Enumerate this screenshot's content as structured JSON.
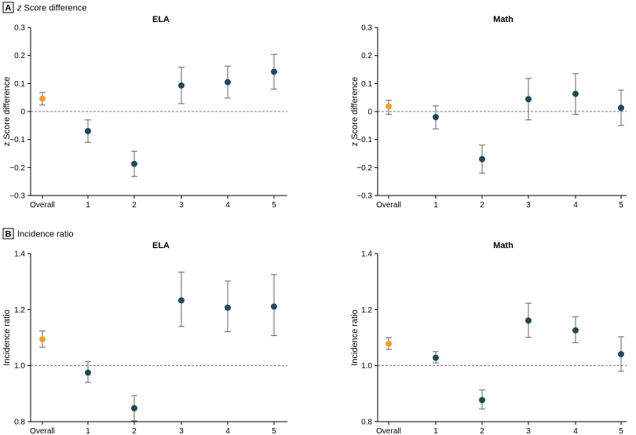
{
  "panels": [
    {
      "letter": "A",
      "title": "z Score difference",
      "title_italic_prefix": "z"
    },
    {
      "letter": "B",
      "title": "Incidence ratio",
      "title_italic_prefix": ""
    }
  ],
  "colors": {
    "overall": "#F0A02A",
    "grade": "#1F4A5A",
    "errorbar": "#666666",
    "axis": "#000000",
    "refline": "#777777"
  },
  "chart_data": [
    {
      "type": "scatter",
      "panel": "A",
      "title": "ELA",
      "ylabel": "z Score difference",
      "categories": [
        "Overall",
        "1",
        "2",
        "3",
        "4",
        "5"
      ],
      "ylim": [
        -0.3,
        0.3
      ],
      "yticks": [
        "0.3",
        "0.2",
        "0.1",
        "0",
        "−0.1",
        "−0.2",
        "−0.3"
      ],
      "ytick_values": [
        0.3,
        0.2,
        0.1,
        0,
        -0.1,
        -0.2,
        -0.3
      ],
      "reference": 0,
      "values": [
        0.046,
        -0.07,
        -0.187,
        0.093,
        0.105,
        0.142
      ],
      "lower": [
        0.023,
        -0.11,
        -0.232,
        0.028,
        0.048,
        0.08
      ],
      "upper": [
        0.068,
        -0.03,
        -0.142,
        0.158,
        0.162,
        0.204
      ]
    },
    {
      "type": "scatter",
      "panel": "A",
      "title": "Math",
      "ylabel": "z Score difference",
      "categories": [
        "Overall",
        "1",
        "2",
        "3",
        "4",
        "5"
      ],
      "ylim": [
        -0.3,
        0.3
      ],
      "yticks": [
        "0.3",
        "0.2",
        "0.1",
        "0",
        "−0.1",
        "−0.2",
        "−0.3"
      ],
      "ytick_values": [
        0.3,
        0.2,
        0.1,
        0,
        -0.1,
        -0.2,
        -0.3
      ],
      "reference": 0,
      "values": [
        0.018,
        -0.02,
        -0.17,
        0.044,
        0.063,
        0.013
      ],
      "lower": [
        -0.01,
        -0.062,
        -0.22,
        -0.03,
        -0.01,
        -0.05
      ],
      "upper": [
        0.04,
        0.02,
        -0.12,
        0.118,
        0.135,
        0.076
      ]
    },
    {
      "type": "scatter",
      "panel": "B",
      "title": "ELA",
      "ylabel": "Incidence ratio",
      "categories": [
        "Overall",
        "1",
        "2",
        "3",
        "4",
        "5"
      ],
      "ylim": [
        0.8,
        1.4
      ],
      "yticks": [
        "1.4",
        "1.2",
        "1.0",
        "0.8"
      ],
      "ytick_values": [
        1.4,
        1.2,
        1.0,
        0.8
      ],
      "reference": 1.0,
      "values": [
        1.094,
        0.975,
        0.848,
        1.233,
        1.207,
        1.211
      ],
      "lower": [
        1.066,
        0.94,
        0.803,
        1.14,
        1.121,
        1.107
      ],
      "upper": [
        1.124,
        1.015,
        0.893,
        1.334,
        1.302,
        1.325
      ]
    },
    {
      "type": "scatter",
      "panel": "B",
      "title": "Math",
      "ylabel": "Incidence ratio",
      "categories": [
        "Overall",
        "1",
        "2",
        "3",
        "4",
        "5"
      ],
      "ylim": [
        0.8,
        1.4
      ],
      "yticks": [
        "1.4",
        "1.2",
        "1.0",
        "0.8"
      ],
      "ytick_values": [
        1.4,
        1.2,
        1.0,
        0.8
      ],
      "reference": 1.0,
      "values": [
        1.078,
        1.028,
        0.877,
        1.161,
        1.126,
        1.041
      ],
      "lower": [
        1.058,
        1.01,
        0.845,
        1.101,
        1.082,
        0.98
      ],
      "upper": [
        1.1,
        1.05,
        0.913,
        1.223,
        1.174,
        1.103
      ]
    }
  ]
}
